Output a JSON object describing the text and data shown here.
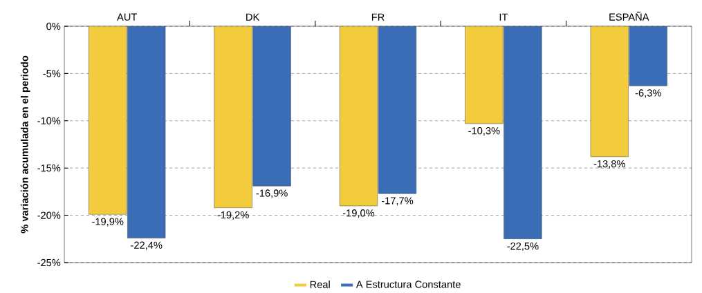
{
  "chart_data": {
    "type": "bar",
    "ylabel": "% variación acumulada en el periodo",
    "categories": [
      "AUT",
      "DK",
      "FR",
      "IT",
      "ESPAÑA"
    ],
    "series": [
      {
        "name": "Real",
        "color": "#f2cc3c",
        "values": [
          -19.9,
          -19.2,
          -19.0,
          -10.3,
          -13.8
        ],
        "value_labels": [
          "-19,9%",
          "-19,2%",
          "-19,0%",
          "-10,3%",
          "-13,8%"
        ]
      },
      {
        "name": "A Estructura Constante",
        "color": "#3a6db5",
        "values": [
          -22.4,
          -16.9,
          -17.7,
          -22.5,
          -6.3
        ],
        "value_labels": [
          "-22,4%",
          "-16,9%",
          "-17,7%",
          "-22,5%",
          "-6,3%"
        ]
      }
    ],
    "ylim": [
      -25,
      0
    ],
    "yticks": [
      {
        "value": 0,
        "label": "0%"
      },
      {
        "value": -5,
        "label": "-5%"
      },
      {
        "value": -10,
        "label": "-10%"
      },
      {
        "value": -15,
        "label": "-15%"
      },
      {
        "value": -20,
        "label": "-20%"
      },
      {
        "value": -25,
        "label": "-25%"
      }
    ],
    "grid": "y",
    "legend": "bottom"
  }
}
